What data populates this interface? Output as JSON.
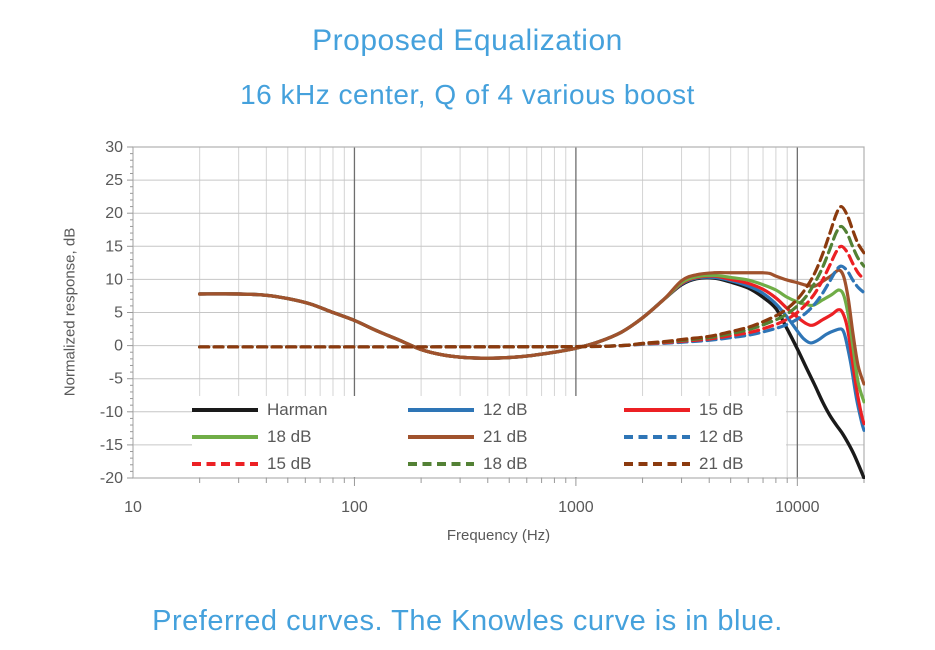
{
  "header": {
    "title": "Proposed Equalization",
    "subtitle": "16 kHz center, Q of 4 various boost"
  },
  "caption": "Preferred curves. The Knowles curve is in blue.",
  "colors": {
    "heading_blue": "#45a1dc",
    "axis_text": "#595959",
    "minor_grid": "#d4d4d4",
    "major_grid": "#6e6e6e",
    "h_grid": "#c6c6c6",
    "plot_border": "#b0b0b0",
    "tick": "#999999"
  },
  "chart_data": {
    "type": "line",
    "title": "Proposed Equalization — 16 kHz center, Q of 4 various boost",
    "xlabel": "Frequency (Hz)",
    "ylabel": "Normalized response, dB",
    "x_scale": "log",
    "xlim": [
      10,
      20000
    ],
    "ylim": [
      -20,
      30
    ],
    "x_ticks": [
      10,
      100,
      1000,
      10000
    ],
    "y_tick_step": 5,
    "grid": true,
    "legend_position": "inside-bottom",
    "legend_columns": 3,
    "series": [
      {
        "name": "Harman",
        "color": "#1a1a1a",
        "style": "solid",
        "points": [
          [
            20,
            7.8
          ],
          [
            30,
            7.8
          ],
          [
            40,
            7.6
          ],
          [
            50,
            7.1
          ],
          [
            63,
            6.3
          ],
          [
            80,
            5.0
          ],
          [
            100,
            3.8
          ],
          [
            125,
            2.3
          ],
          [
            160,
            0.8
          ],
          [
            200,
            -0.6
          ],
          [
            250,
            -1.4
          ],
          [
            315,
            -1.8
          ],
          [
            400,
            -1.9
          ],
          [
            500,
            -1.8
          ],
          [
            630,
            -1.5
          ],
          [
            800,
            -1.0
          ],
          [
            1000,
            -0.4
          ],
          [
            1250,
            0.5
          ],
          [
            1600,
            2.0
          ],
          [
            2000,
            4.2
          ],
          [
            2500,
            7.0
          ],
          [
            3000,
            9.2
          ],
          [
            3500,
            10.1
          ],
          [
            4200,
            10.2
          ],
          [
            5000,
            9.6
          ],
          [
            6000,
            8.7
          ],
          [
            7000,
            7.3
          ],
          [
            8000,
            5.6
          ],
          [
            9000,
            2.5
          ],
          [
            10000,
            -0.5
          ],
          [
            11000,
            -3.4
          ],
          [
            12000,
            -6.0
          ],
          [
            13000,
            -8.5
          ],
          [
            14000,
            -10.5
          ],
          [
            15000,
            -12.0
          ],
          [
            16000,
            -13.3
          ],
          [
            17000,
            -14.8
          ],
          [
            18000,
            -16.4
          ],
          [
            19000,
            -18.2
          ],
          [
            20000,
            -20.0
          ]
        ]
      },
      {
        "name": "12 dB",
        "color": "#2e75b6",
        "style": "solid",
        "points": [
          [
            20,
            7.8
          ],
          [
            30,
            7.8
          ],
          [
            40,
            7.6
          ],
          [
            50,
            7.1
          ],
          [
            63,
            6.3
          ],
          [
            80,
            5.0
          ],
          [
            100,
            3.8
          ],
          [
            125,
            2.3
          ],
          [
            160,
            0.8
          ],
          [
            200,
            -0.6
          ],
          [
            250,
            -1.4
          ],
          [
            315,
            -1.8
          ],
          [
            400,
            -1.9
          ],
          [
            500,
            -1.8
          ],
          [
            630,
            -1.5
          ],
          [
            800,
            -1.0
          ],
          [
            1000,
            -0.4
          ],
          [
            1250,
            0.5
          ],
          [
            1600,
            2.0
          ],
          [
            2000,
            4.2
          ],
          [
            2500,
            7.0
          ],
          [
            3000,
            9.3
          ],
          [
            3500,
            10.2
          ],
          [
            4200,
            10.3
          ],
          [
            5000,
            9.8
          ],
          [
            6000,
            9.0
          ],
          [
            7000,
            7.9
          ],
          [
            8000,
            6.3
          ],
          [
            9000,
            4.3
          ],
          [
            10000,
            2.2
          ],
          [
            10700,
            1.0
          ],
          [
            11500,
            0.4
          ],
          [
            12500,
            0.9
          ],
          [
            13500,
            1.7
          ],
          [
            14800,
            2.3
          ],
          [
            15800,
            2.5
          ],
          [
            16300,
            1.8
          ],
          [
            16800,
            0.0
          ],
          [
            17500,
            -3.0
          ],
          [
            18500,
            -8.0
          ],
          [
            19500,
            -11.5
          ],
          [
            20000,
            -12.8
          ]
        ]
      },
      {
        "name": "15 dB",
        "color": "#ec2024",
        "style": "solid",
        "points": [
          [
            20,
            7.8
          ],
          [
            30,
            7.8
          ],
          [
            40,
            7.6
          ],
          [
            50,
            7.1
          ],
          [
            63,
            6.3
          ],
          [
            80,
            5.0
          ],
          [
            100,
            3.8
          ],
          [
            125,
            2.3
          ],
          [
            160,
            0.8
          ],
          [
            200,
            -0.6
          ],
          [
            250,
            -1.4
          ],
          [
            315,
            -1.8
          ],
          [
            400,
            -1.9
          ],
          [
            500,
            -1.8
          ],
          [
            630,
            -1.5
          ],
          [
            800,
            -1.0
          ],
          [
            1000,
            -0.4
          ],
          [
            1250,
            0.5
          ],
          [
            1600,
            2.0
          ],
          [
            2000,
            4.2
          ],
          [
            2500,
            7.0
          ],
          [
            3000,
            9.4
          ],
          [
            3500,
            10.3
          ],
          [
            4200,
            10.5
          ],
          [
            5000,
            10.0
          ],
          [
            6000,
            9.4
          ],
          [
            7000,
            8.5
          ],
          [
            8000,
            7.2
          ],
          [
            9000,
            5.6
          ],
          [
            10000,
            4.3
          ],
          [
            11000,
            3.3
          ],
          [
            11800,
            3.1
          ],
          [
            13000,
            3.9
          ],
          [
            14300,
            4.7
          ],
          [
            15300,
            5.4
          ],
          [
            16000,
            5.0
          ],
          [
            16800,
            2.8
          ],
          [
            17500,
            -1.0
          ],
          [
            18500,
            -6.5
          ],
          [
            19500,
            -10.5
          ],
          [
            20000,
            -11.8
          ]
        ]
      },
      {
        "name": "18 dB",
        "color": "#70ad47",
        "style": "solid",
        "points": [
          [
            20,
            7.8
          ],
          [
            30,
            7.8
          ],
          [
            40,
            7.6
          ],
          [
            50,
            7.1
          ],
          [
            63,
            6.3
          ],
          [
            80,
            5.0
          ],
          [
            100,
            3.8
          ],
          [
            125,
            2.3
          ],
          [
            160,
            0.8
          ],
          [
            200,
            -0.6
          ],
          [
            250,
            -1.4
          ],
          [
            315,
            -1.8
          ],
          [
            400,
            -1.9
          ],
          [
            500,
            -1.8
          ],
          [
            630,
            -1.5
          ],
          [
            800,
            -1.0
          ],
          [
            1000,
            -0.4
          ],
          [
            1250,
            0.5
          ],
          [
            1600,
            2.0
          ],
          [
            2000,
            4.2
          ],
          [
            2500,
            7.0
          ],
          [
            3000,
            9.5
          ],
          [
            3500,
            10.4
          ],
          [
            4200,
            10.6
          ],
          [
            5000,
            10.3
          ],
          [
            6000,
            9.9
          ],
          [
            7000,
            9.2
          ],
          [
            8000,
            8.4
          ],
          [
            9000,
            7.3
          ],
          [
            10000,
            6.6
          ],
          [
            11000,
            6.2
          ],
          [
            11800,
            6.1
          ],
          [
            13000,
            6.9
          ],
          [
            14300,
            7.7
          ],
          [
            15400,
            8.4
          ],
          [
            16200,
            7.6
          ],
          [
            17000,
            4.5
          ],
          [
            17800,
            0.0
          ],
          [
            18800,
            -5.5
          ],
          [
            20000,
            -8.5
          ]
        ]
      },
      {
        "name": "21 dB",
        "color": "#a0522d",
        "style": "solid",
        "points": [
          [
            20,
            7.8
          ],
          [
            30,
            7.8
          ],
          [
            40,
            7.6
          ],
          [
            50,
            7.1
          ],
          [
            63,
            6.3
          ],
          [
            80,
            5.0
          ],
          [
            100,
            3.8
          ],
          [
            125,
            2.3
          ],
          [
            160,
            0.8
          ],
          [
            200,
            -0.6
          ],
          [
            250,
            -1.4
          ],
          [
            315,
            -1.8
          ],
          [
            400,
            -1.9
          ],
          [
            500,
            -1.8
          ],
          [
            630,
            -1.5
          ],
          [
            800,
            -1.0
          ],
          [
            1000,
            -0.4
          ],
          [
            1250,
            0.5
          ],
          [
            1600,
            2.0
          ],
          [
            2000,
            4.2
          ],
          [
            2500,
            7.0
          ],
          [
            3000,
            9.8
          ],
          [
            3500,
            10.7
          ],
          [
            4200,
            11.0
          ],
          [
            5000,
            11.0
          ],
          [
            6000,
            11.0
          ],
          [
            7000,
            11.0
          ],
          [
            7500,
            10.9
          ],
          [
            8000,
            10.5
          ],
          [
            9000,
            9.9
          ],
          [
            10000,
            9.5
          ],
          [
            11000,
            9.1
          ],
          [
            12000,
            9.0
          ],
          [
            13000,
            9.7
          ],
          [
            14300,
            10.6
          ],
          [
            15400,
            11.4
          ],
          [
            16200,
            10.4
          ],
          [
            17000,
            7.0
          ],
          [
            17800,
            2.0
          ],
          [
            18800,
            -3.0
          ],
          [
            20000,
            -5.8
          ]
        ]
      },
      {
        "name": "12 dB",
        "color": "#2e75b6",
        "style": "dashed",
        "points": [
          [
            20,
            -0.2
          ],
          [
            200,
            -0.2
          ],
          [
            1000,
            -0.15
          ],
          [
            1600,
            0.0
          ],
          [
            2000,
            0.2
          ],
          [
            2500,
            0.35
          ],
          [
            3150,
            0.55
          ],
          [
            4000,
            0.8
          ],
          [
            5000,
            1.2
          ],
          [
            6300,
            1.7
          ],
          [
            8000,
            2.6
          ],
          [
            9000,
            3.2
          ],
          [
            10000,
            4.0
          ],
          [
            11000,
            5.0
          ],
          [
            12000,
            6.3
          ],
          [
            13000,
            7.9
          ],
          [
            14000,
            9.7
          ],
          [
            15000,
            11.4
          ],
          [
            15800,
            12.0
          ],
          [
            16800,
            11.3
          ],
          [
            17800,
            9.9
          ],
          [
            18800,
            8.8
          ],
          [
            20000,
            8.0
          ]
        ]
      },
      {
        "name": "15 dB",
        "color": "#ec2024",
        "style": "dashed",
        "points": [
          [
            20,
            -0.2
          ],
          [
            200,
            -0.2
          ],
          [
            1000,
            -0.15
          ],
          [
            1600,
            0.0
          ],
          [
            2000,
            0.25
          ],
          [
            2500,
            0.45
          ],
          [
            3150,
            0.7
          ],
          [
            4000,
            1.0
          ],
          [
            5000,
            1.5
          ],
          [
            6300,
            2.1
          ],
          [
            8000,
            3.2
          ],
          [
            9000,
            4.0
          ],
          [
            10000,
            5.0
          ],
          [
            11000,
            6.3
          ],
          [
            12000,
            7.9
          ],
          [
            13000,
            9.9
          ],
          [
            14000,
            12.1
          ],
          [
            15000,
            14.2
          ],
          [
            15800,
            15.0
          ],
          [
            16800,
            14.1
          ],
          [
            17800,
            12.4
          ],
          [
            18800,
            11.0
          ],
          [
            20000,
            10.0
          ]
        ]
      },
      {
        "name": "18 dB",
        "color": "#538135",
        "style": "dashed",
        "points": [
          [
            20,
            -0.2
          ],
          [
            200,
            -0.2
          ],
          [
            1000,
            -0.15
          ],
          [
            1600,
            0.0
          ],
          [
            2000,
            0.3
          ],
          [
            2500,
            0.55
          ],
          [
            3150,
            0.85
          ],
          [
            4000,
            1.2
          ],
          [
            5000,
            1.8
          ],
          [
            6300,
            2.6
          ],
          [
            8000,
            3.9
          ],
          [
            9000,
            4.8
          ],
          [
            10000,
            6.0
          ],
          [
            11000,
            7.5
          ],
          [
            12000,
            9.5
          ],
          [
            13000,
            11.8
          ],
          [
            14000,
            14.5
          ],
          [
            15000,
            17.1
          ],
          [
            15800,
            18.0
          ],
          [
            16800,
            16.9
          ],
          [
            17800,
            14.9
          ],
          [
            18800,
            13.2
          ],
          [
            20000,
            12.0
          ]
        ]
      },
      {
        "name": "21 dB",
        "color": "#8b3a0e",
        "style": "dashed",
        "points": [
          [
            20,
            -0.2
          ],
          [
            200,
            -0.2
          ],
          [
            1000,
            -0.15
          ],
          [
            1600,
            0.0
          ],
          [
            2000,
            0.35
          ],
          [
            2500,
            0.6
          ],
          [
            3150,
            1.0
          ],
          [
            4000,
            1.4
          ],
          [
            5000,
            2.1
          ],
          [
            6300,
            3.0
          ],
          [
            8000,
            4.5
          ],
          [
            9000,
            5.6
          ],
          [
            10000,
            7.0
          ],
          [
            11000,
            8.8
          ],
          [
            12000,
            11.0
          ],
          [
            13000,
            13.8
          ],
          [
            14000,
            16.9
          ],
          [
            15000,
            19.9
          ],
          [
            15800,
            21.0
          ],
          [
            16800,
            19.7
          ],
          [
            17800,
            17.4
          ],
          [
            18800,
            15.4
          ],
          [
            20000,
            14.0
          ]
        ]
      }
    ]
  }
}
